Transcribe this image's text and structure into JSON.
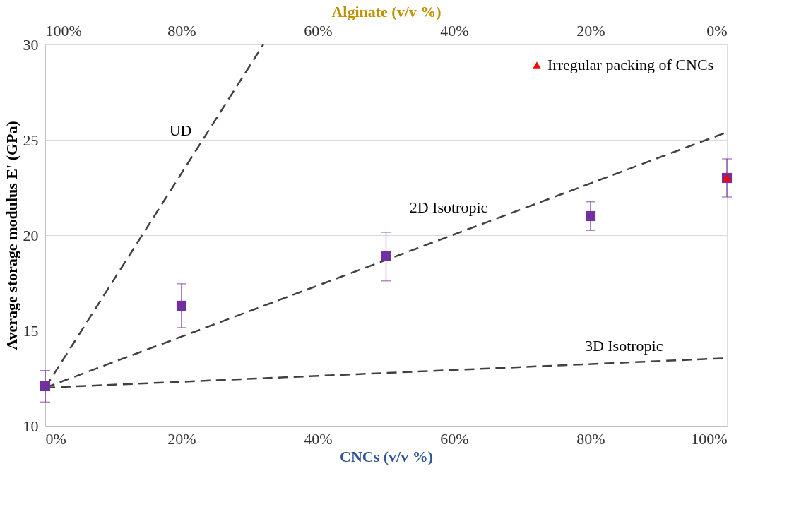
{
  "chart_data": {
    "type": "scatter",
    "xlabel": "CNCs (v/v %)",
    "ylabel": "Average storage modulus E' (GPa)",
    "x2label": "Alginate (v/v %)",
    "xlim": [
      0,
      100
    ],
    "xticks": [
      {
        "value": 0,
        "label": "0%"
      },
      {
        "value": 20,
        "label": "20%"
      },
      {
        "value": 40,
        "label": "40%"
      },
      {
        "value": 60,
        "label": "60%"
      },
      {
        "value": 80,
        "label": "80%"
      },
      {
        "value": 100,
        "label": "100%"
      }
    ],
    "x2lim": [
      100,
      0
    ],
    "x2ticks": [
      {
        "value": 100,
        "label": "100%"
      },
      {
        "value": 80,
        "label": "80%"
      },
      {
        "value": 60,
        "label": "60%"
      },
      {
        "value": 40,
        "label": "40%"
      },
      {
        "value": 20,
        "label": "20%"
      },
      {
        "value": 0,
        "label": "0%"
      }
    ],
    "ylim": [
      10,
      30
    ],
    "yticks": [
      10,
      15,
      20,
      25,
      30
    ],
    "grid": "y",
    "legend": "top right",
    "series": [
      {
        "type": "line",
        "name": "UD",
        "color": "#404040",
        "line_style": "dashed",
        "marker": "none",
        "x": [
          0,
          32
        ],
        "values": [
          12,
          30
        ]
      },
      {
        "type": "line",
        "name": "2D Isotropic",
        "color": "#404040",
        "line_style": "dashed",
        "marker": "none",
        "x": [
          0,
          100
        ],
        "values": [
          12,
          25.4
        ]
      },
      {
        "type": "line",
        "name": "3D Isotropic",
        "color": "#404040",
        "line_style": "dashed",
        "marker": "none",
        "x": [
          0,
          100
        ],
        "values": [
          12,
          13.55
        ]
      },
      {
        "color": "#7030a0",
        "marker": "square",
        "x": [
          0,
          20,
          50,
          80,
          100
        ],
        "values": [
          12.1,
          16.3,
          18.9,
          21.0,
          23.0
        ],
        "errors": [
          [
            11.25,
            12.9
          ],
          [
            15.15,
            17.45
          ],
          [
            17.6,
            20.15
          ],
          [
            20.25,
            21.75
          ],
          [
            22.0,
            24.0
          ]
        ]
      },
      {
        "name": "Irregular packing of CNCs",
        "color": "#ff0000",
        "marker": "triangle",
        "x": [
          100
        ],
        "values": [
          23.0
        ]
      }
    ]
  }
}
